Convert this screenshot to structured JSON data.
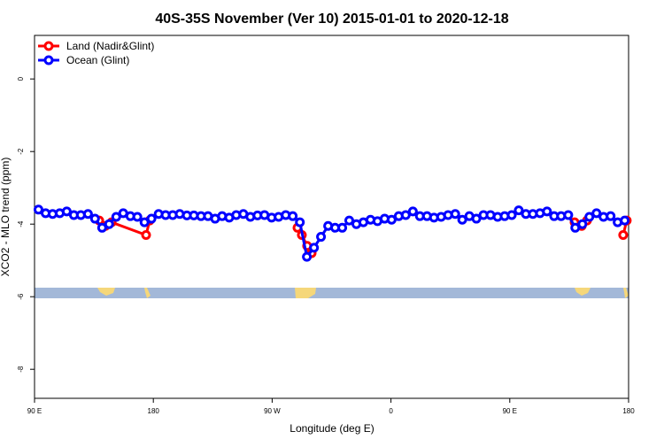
{
  "chart_data": {
    "type": "line",
    "title": "40S-35S November (Ver 10)   2015-01-01 to 2020-12-18",
    "xlabel": "Longitude (deg E)",
    "ylabel": "XCO2 - MLO trend (ppm)",
    "xlim": [
      90,
      540
    ],
    "ylim": [
      -8.8,
      1.2
    ],
    "xticks": [
      {
        "value": 90,
        "label": "90 E"
      },
      180,
      {
        "value": 270,
        "label": "90 W"
      },
      {
        "value": 360,
        "label": "0"
      },
      {
        "value": 450,
        "label": "90 E"
      },
      {
        "value": 540,
        "label": "180"
      }
    ],
    "yticks": [
      0,
      -2,
      -4,
      -6,
      -8
    ],
    "legend": "top-left",
    "series": [
      {
        "name": "Land (Nadir&Glint)",
        "color": "#ff0000",
        "x": [
          139,
          143.7,
          148.4,
          174.5,
          177.2,
          null,
          289.2,
          292.5,
          296.5,
          299.9,
          null,
          499.1,
          504.5,
          508.5,
          null,
          535.9,
          538.6
        ],
        "values": [
          -3.9,
          -4.05,
          -3.95,
          -4.3,
          -3.9,
          null,
          -4.1,
          -4.3,
          -4.6,
          -4.8,
          null,
          -3.95,
          -4.05,
          -3.9,
          null,
          -4.3,
          -3.9
        ]
      },
      {
        "name": "Ocean (Glint)",
        "color": "#0000ff",
        "x": [
          93,
          98.4,
          103.7,
          109.1,
          114.4,
          119.8,
          125.1,
          130.5,
          135.8,
          141.2,
          146.5,
          151.9,
          157.2,
          162.6,
          167.9,
          173.3,
          178.6,
          184,
          189.3,
          194.7,
          200,
          205.4,
          210.7,
          216.1,
          221.4,
          226.8,
          232.1,
          237.5,
          242.8,
          248.2,
          253.5,
          258.9,
          264.2,
          269.6,
          274.9,
          280.3,
          285.6,
          291,
          296.3,
          301.7,
          307,
          312.4,
          317.7,
          323.1,
          328.4,
          333.8,
          339.1,
          344.5,
          349.8,
          355.2,
          360.5,
          365.9,
          371.2,
          376.6,
          381.9,
          387.3,
          392.6,
          398,
          403.3,
          408.7,
          414,
          419.4,
          424.7,
          430.1,
          435.4,
          440.8,
          446.1,
          451.5,
          456.8,
          462.2,
          467.5,
          472.9,
          478.2,
          483.6,
          488.9,
          494.3,
          499.6,
          505,
          510.3,
          515.7,
          521,
          526.4,
          531.7,
          537.1
        ],
        "values": [
          -3.6,
          -3.7,
          -3.72,
          -3.7,
          -3.65,
          -3.75,
          -3.75,
          -3.72,
          -3.85,
          -4.1,
          -4.0,
          -3.8,
          -3.7,
          -3.78,
          -3.8,
          -3.95,
          -3.85,
          -3.72,
          -3.75,
          -3.75,
          -3.72,
          -3.76,
          -3.76,
          -3.78,
          -3.78,
          -3.85,
          -3.78,
          -3.82,
          -3.75,
          -3.72,
          -3.8,
          -3.76,
          -3.75,
          -3.82,
          -3.8,
          -3.75,
          -3.78,
          -3.95,
          -4.9,
          -4.65,
          -4.35,
          -4.05,
          -4.1,
          -4.1,
          -3.9,
          -4.0,
          -3.95,
          -3.88,
          -3.92,
          -3.85,
          -3.88,
          -3.78,
          -3.75,
          -3.65,
          -3.78,
          -3.78,
          -3.82,
          -3.8,
          -3.75,
          -3.72,
          -3.88,
          -3.78,
          -3.85,
          -3.75,
          -3.75,
          -3.8,
          -3.78,
          -3.75,
          -3.62,
          -3.72,
          -3.72,
          -3.7,
          -3.65,
          -3.78,
          -3.78,
          -3.75,
          -4.1,
          -4.0,
          -3.8,
          -3.7,
          -3.8,
          -3.78,
          -3.95,
          -3.9
        ]
      }
    ]
  }
}
